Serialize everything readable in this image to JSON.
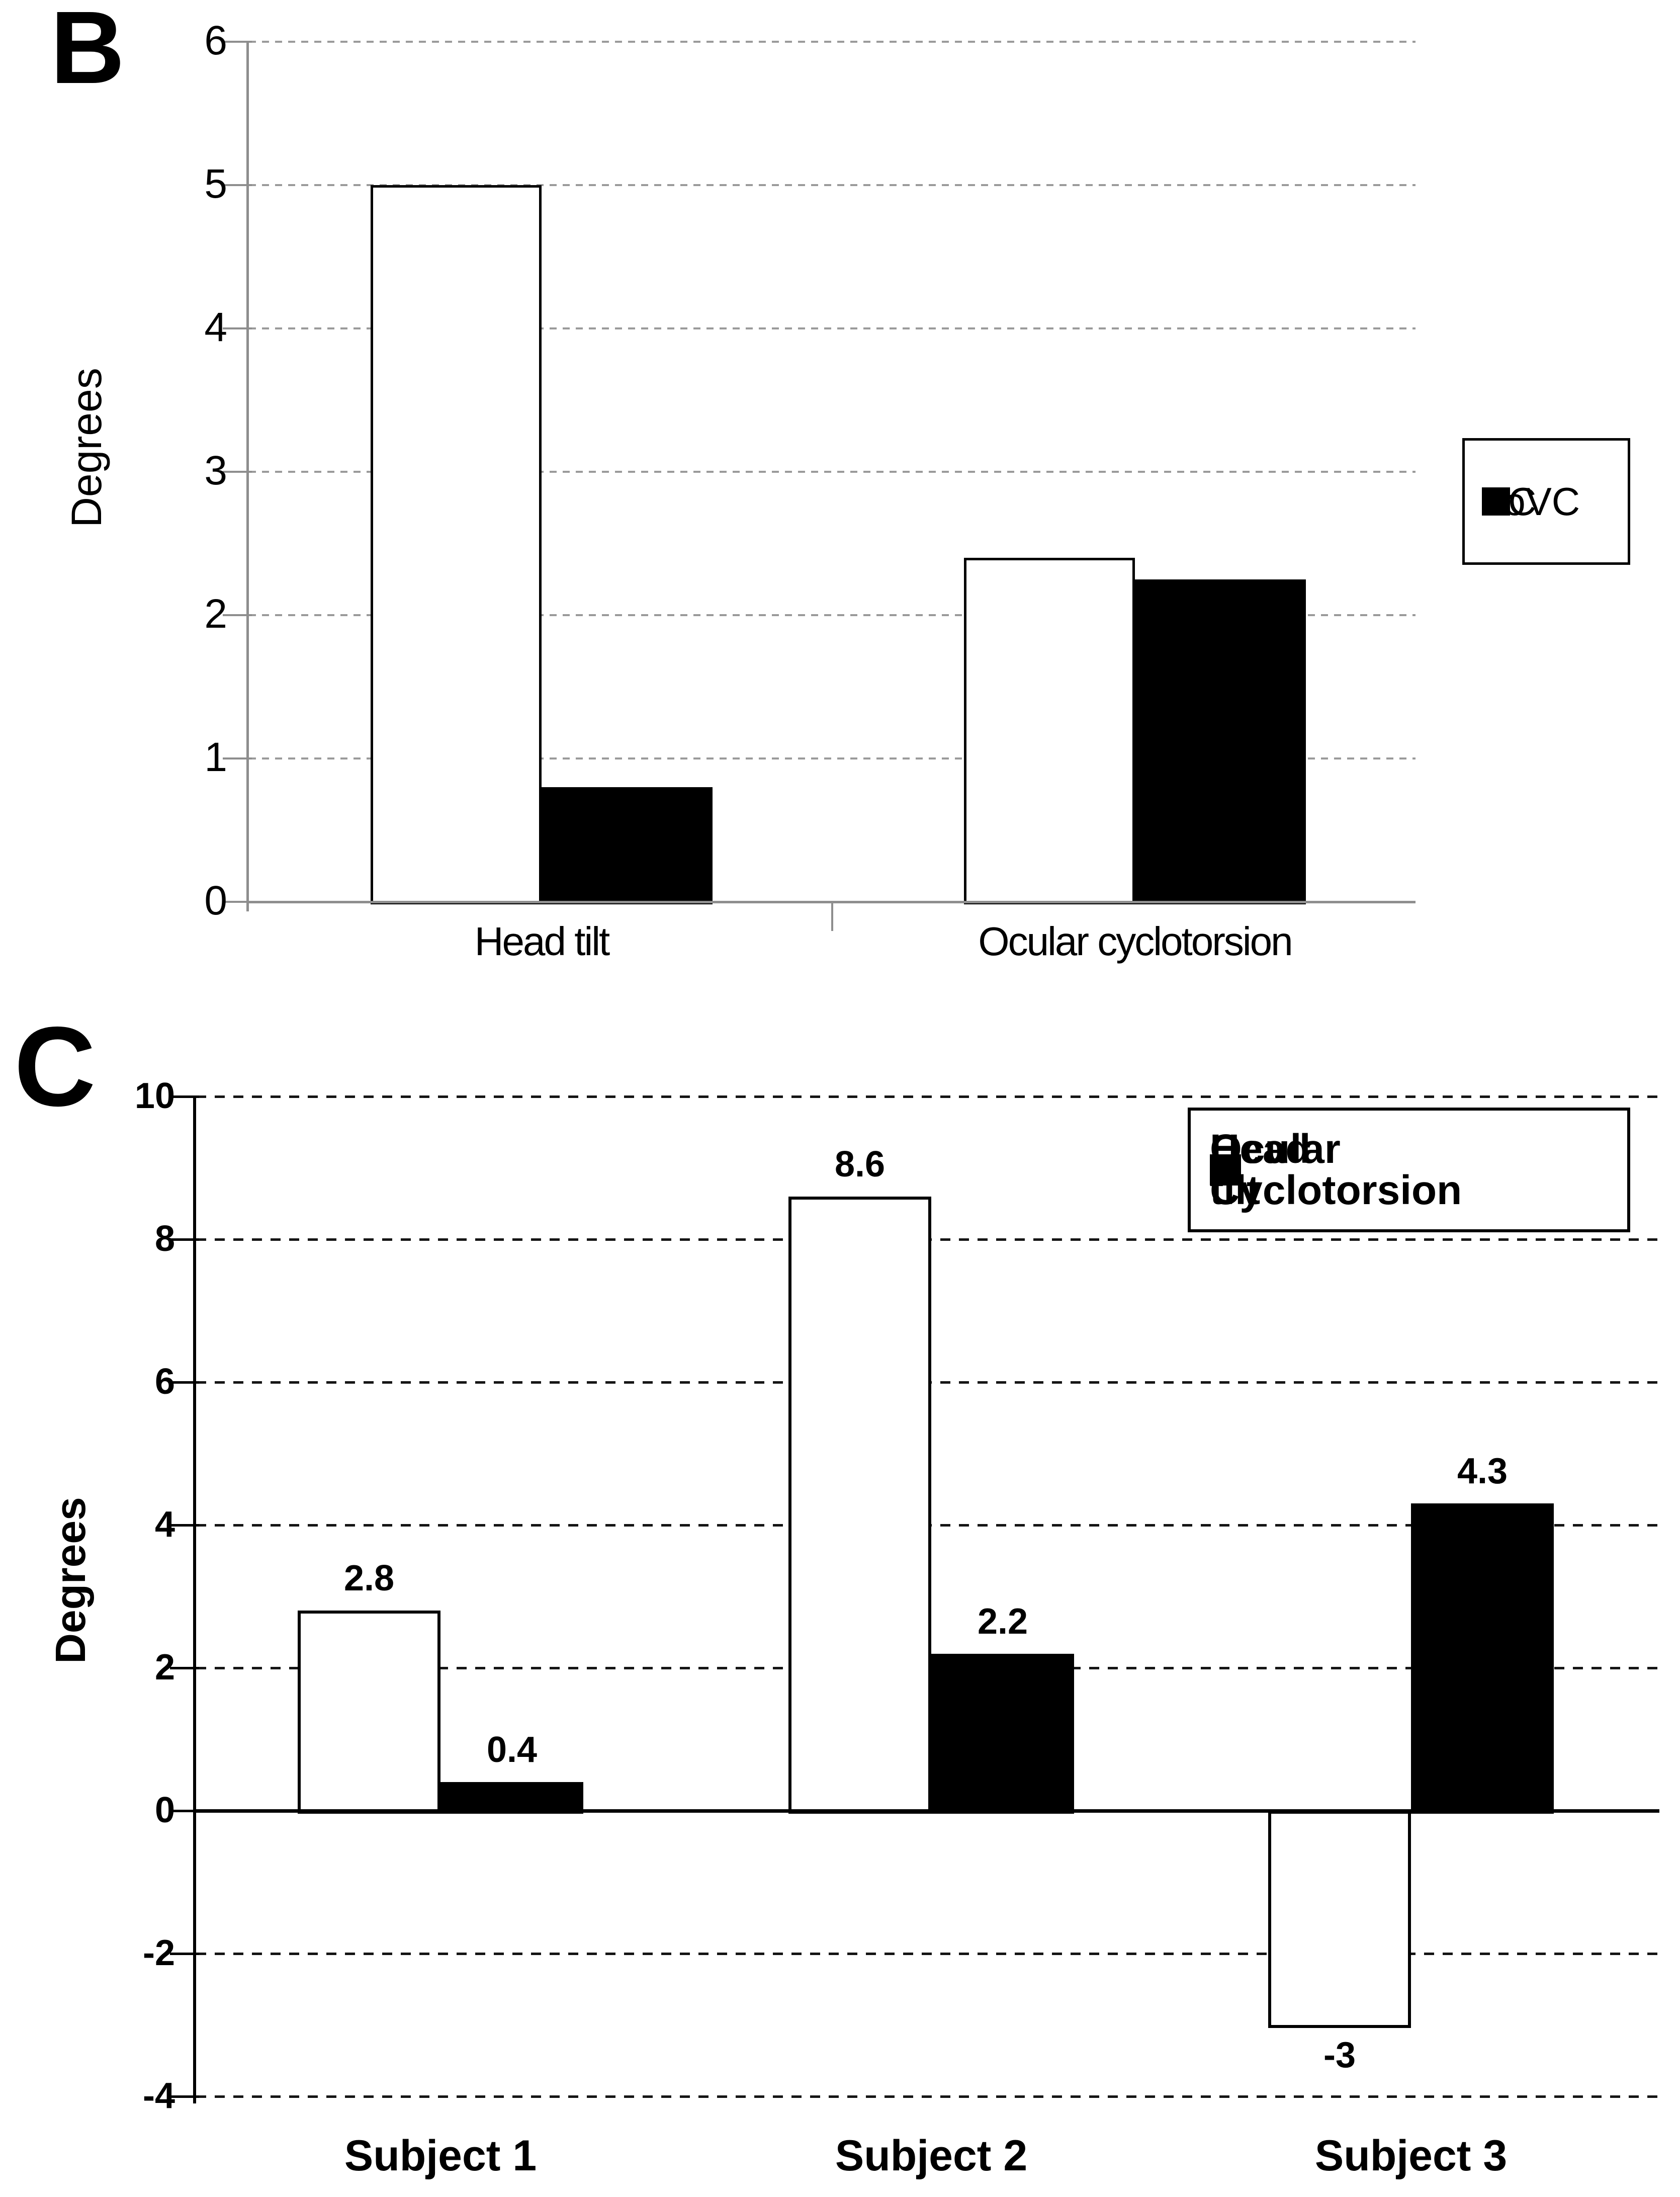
{
  "panels": {
    "b": {
      "letter": "B",
      "ylabel": "Degrees"
    },
    "c": {
      "letter": "C",
      "ylabel": "Degrees"
    }
  },
  "chart_data": [
    {
      "panel": "B",
      "type": "bar",
      "title": "",
      "ylabel": "Degrees",
      "ylim": [
        0,
        6
      ],
      "yticks": [
        6,
        5,
        4,
        3,
        2,
        1,
        0
      ],
      "grid": "horizontal-dashed-gray",
      "categories": [
        "Head tilt",
        "Ocular cyclotorsion"
      ],
      "series": [
        {
          "name": "VC",
          "fill": "#ffffff",
          "values": [
            5.0,
            2.4
          ]
        },
        {
          "name": "noVC",
          "fill": "#000000",
          "values": [
            0.8,
            2.25
          ]
        }
      ],
      "legend_position": "right-outside",
      "legend_entries": [
        "VC",
        "noVC"
      ]
    },
    {
      "panel": "C",
      "type": "bar",
      "title": "",
      "ylabel": "Degrees",
      "ylim": [
        -4,
        10
      ],
      "yticks": [
        10,
        8,
        6,
        4,
        2,
        0,
        -2,
        -4
      ],
      "grid": "horizontal-dashed-black",
      "categories": [
        "Subject 1",
        "Subject 2",
        "Subject 3"
      ],
      "series": [
        {
          "name": "Head tilt",
          "fill": "#ffffff",
          "values": [
            2.8,
            8.6,
            -3
          ]
        },
        {
          "name": "Ocular Cyclotorsion",
          "fill": "#000000",
          "values": [
            0.4,
            2.2,
            4.3
          ]
        }
      ],
      "data_labels": [
        [
          "2.8",
          "8.6",
          "-3"
        ],
        [
          "0.4",
          "2.2",
          "4.3"
        ]
      ],
      "legend_position": "top-right-inside",
      "legend_entries": [
        "Head tilt",
        "Ocular Cyclotorsion"
      ]
    }
  ]
}
